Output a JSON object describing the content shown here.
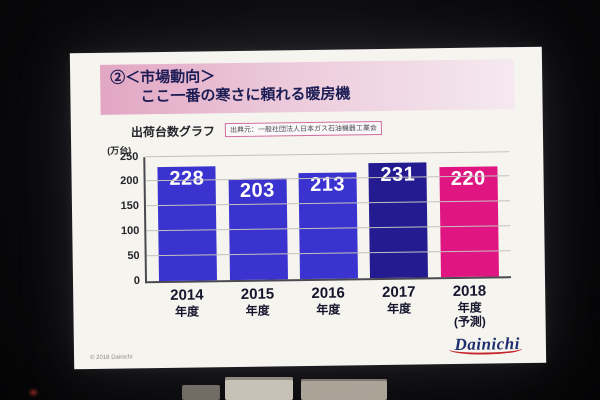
{
  "slide": {
    "title_line1": "②＜市場動向＞",
    "title_line2": "ここ一番の寒さに頼れる暖房機",
    "graph_label": "出荷台数グラフ",
    "source_note": "出典元：一般社団法人日本ガス石油機器工業会",
    "copyright": "© 2018 Dainichi",
    "logo": "Dainichi"
  },
  "chart_data": {
    "type": "bar",
    "title": "出荷台数グラフ",
    "ylabel": "(万台)",
    "ylim": [
      0,
      250
    ],
    "yticks": [
      0,
      50,
      100,
      150,
      200,
      250
    ],
    "grid": true,
    "categories": [
      {
        "year": "2014",
        "suffix": "年度",
        "note": ""
      },
      {
        "year": "2015",
        "suffix": "年度",
        "note": ""
      },
      {
        "year": "2016",
        "suffix": "年度",
        "note": ""
      },
      {
        "year": "2017",
        "suffix": "年度",
        "note": ""
      },
      {
        "year": "2018",
        "suffix": "年度",
        "note": "(予測)"
      }
    ],
    "values": [
      228,
      203,
      213,
      231,
      220
    ],
    "bar_colors": [
      "#3b33cf",
      "#3b33cf",
      "#3b33cf",
      "#241b91",
      "#df1581"
    ]
  }
}
